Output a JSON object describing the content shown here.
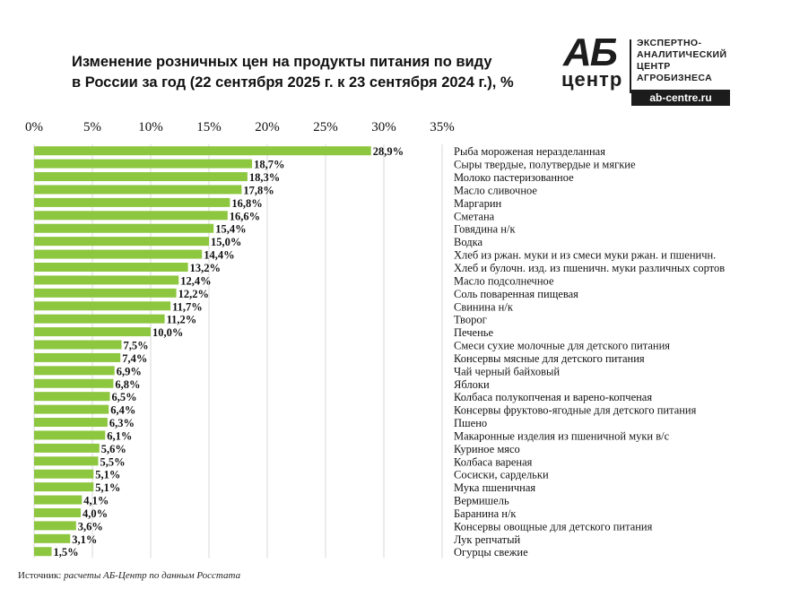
{
  "header": {
    "title_line1": "Изменение розничных цен на продукты питания по виду",
    "title_line2": "в России за год (22 сентября 2025 г. к 23 сентября 2024 г.), %"
  },
  "logo": {
    "mark_top": "АБ",
    "mark_bottom": "центр",
    "line1": "ЭКСПЕРТНО-",
    "line2": "АНАЛИТИЧЕСКИЙ",
    "line3": "ЦЕНТР",
    "line4": "АГРОБИЗНЕСА",
    "url": "ab-centre.ru"
  },
  "source": {
    "label": "Источник:",
    "text": "расчеты АБ-Центр по данным Росстата"
  },
  "chart_data": {
    "type": "bar",
    "orientation": "horizontal",
    "xlim": [
      0,
      35
    ],
    "tick_labels": [
      "0%",
      "5%",
      "10%",
      "15%",
      "20%",
      "25%",
      "30%",
      "35%"
    ],
    "ticks": [
      0,
      5,
      10,
      15,
      20,
      25,
      30,
      35
    ],
    "grid": true,
    "bar_color": "#8dc63f",
    "categories": [
      "Рыба мороженая неразделанная",
      "Сыры твердые, полутвердые и мягкие",
      "Молоко пастеризованное",
      "Масло сливочное",
      "Маргарин",
      "Сметана",
      "Говядина н/к",
      "Водка",
      "Хлеб из ржан. муки и из смеси муки ржан. и пшеничн.",
      "Хлеб и булочн. изд. из пшеничн. муки различных сортов",
      "Масло подсолнечное",
      "Соль поваренная пищевая",
      "Свинина н/к",
      "Творог",
      "Печенье",
      "Смеси сухие молочные для детского питания",
      "Консервы мясные для детского питания",
      "Чай черный байховый",
      "Яблоки",
      "Колбаса полукопченая и варено-копченая",
      "Консервы фруктово-ягодные для детского питания",
      "Пшено",
      "Макаронные изделия из пшеничной муки в/с",
      "Куриное мясо",
      "Колбаса вареная",
      "Сосиски, сардельки",
      "Мука пшеничная",
      "Вермишель",
      "Баранина н/к",
      "Консервы овощные для детского питания",
      "Лук репчатый",
      "Огурцы свежие"
    ],
    "values": [
      28.9,
      18.7,
      18.3,
      17.8,
      16.8,
      16.6,
      15.4,
      15.0,
      14.4,
      13.2,
      12.4,
      12.2,
      11.7,
      11.2,
      10.0,
      7.5,
      7.4,
      6.9,
      6.8,
      6.5,
      6.4,
      6.3,
      6.1,
      5.6,
      5.5,
      5.1,
      5.1,
      4.1,
      4.0,
      3.6,
      3.1,
      1.5
    ],
    "value_labels": [
      "28,9%",
      "18,7%",
      "18,3%",
      "17,8%",
      "16,8%",
      "16,6%",
      "15,4%",
      "15,0%",
      "14,4%",
      "13,2%",
      "12,4%",
      "12,2%",
      "11,7%",
      "11,2%",
      "10,0%",
      "7,5%",
      "7,4%",
      "6,9%",
      "6,8%",
      "6,5%",
      "6,4%",
      "6,3%",
      "6,1%",
      "5,6%",
      "5,5%",
      "5,1%",
      "5,1%",
      "4,1%",
      "4,0%",
      "3,6%",
      "3,1%",
      "1,5%"
    ]
  }
}
